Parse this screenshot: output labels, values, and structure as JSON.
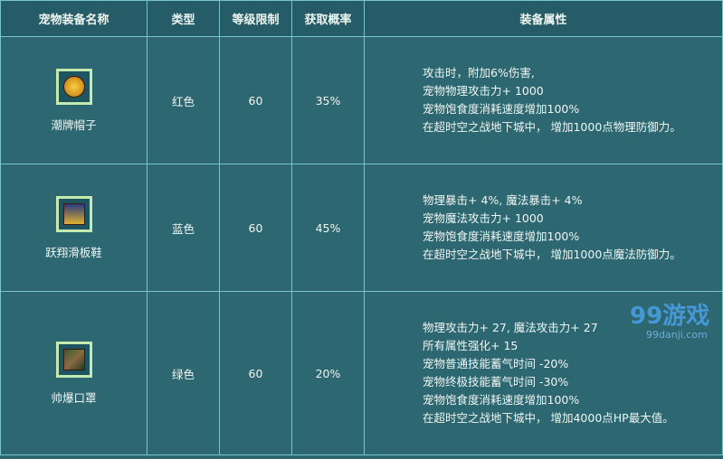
{
  "headers": [
    "宠物装备名称",
    "类型",
    "等级限制",
    "获取概率",
    "装备属性"
  ],
  "rows": [
    {
      "name": "潮牌帽子",
      "type": "红色",
      "level": "60",
      "rate": "35%",
      "icon": "hat-icon",
      "icon_color": "#e0a020",
      "attrs": [
        "攻击时，附加6%伤害,",
        "宠物物理攻击力+ 1000",
        "宠物饱食度消耗速度增加100%",
        "在超时空之战地下城中， 增加1000点物理防御力。"
      ]
    },
    {
      "name": "跃翔滑板鞋",
      "type": "蓝色",
      "level": "60",
      "rate": "45%",
      "icon": "shoes-icon",
      "icon_color": "#d8b030",
      "attrs": [
        "物理暴击+ 4%, 魔法暴击+ 4%",
        "宠物魔法攻击力+ 1000",
        "宠物饱食度消耗速度增加100%",
        "在超时空之战地下城中， 增加1000点魔法防御力。"
      ]
    },
    {
      "name": "帅爆口罩",
      "type": "绿色",
      "level": "60",
      "rate": "20%",
      "icon": "mask-icon",
      "icon_color": "#6a7a40",
      "attrs": [
        "物理攻击力+ 27, 魔法攻击力+ 27",
        "所有属性强化+ 15",
        "宠物普通技能蓄气时间 -20%",
        "宠物终极技能蓄气时间 -30%",
        "宠物饱食度消耗速度增加100%",
        "在超时空之战地下城中， 增加4000点HP最大值。"
      ]
    }
  ],
  "watermark": {
    "logo": "99游戏",
    "url": "99danji.com"
  }
}
